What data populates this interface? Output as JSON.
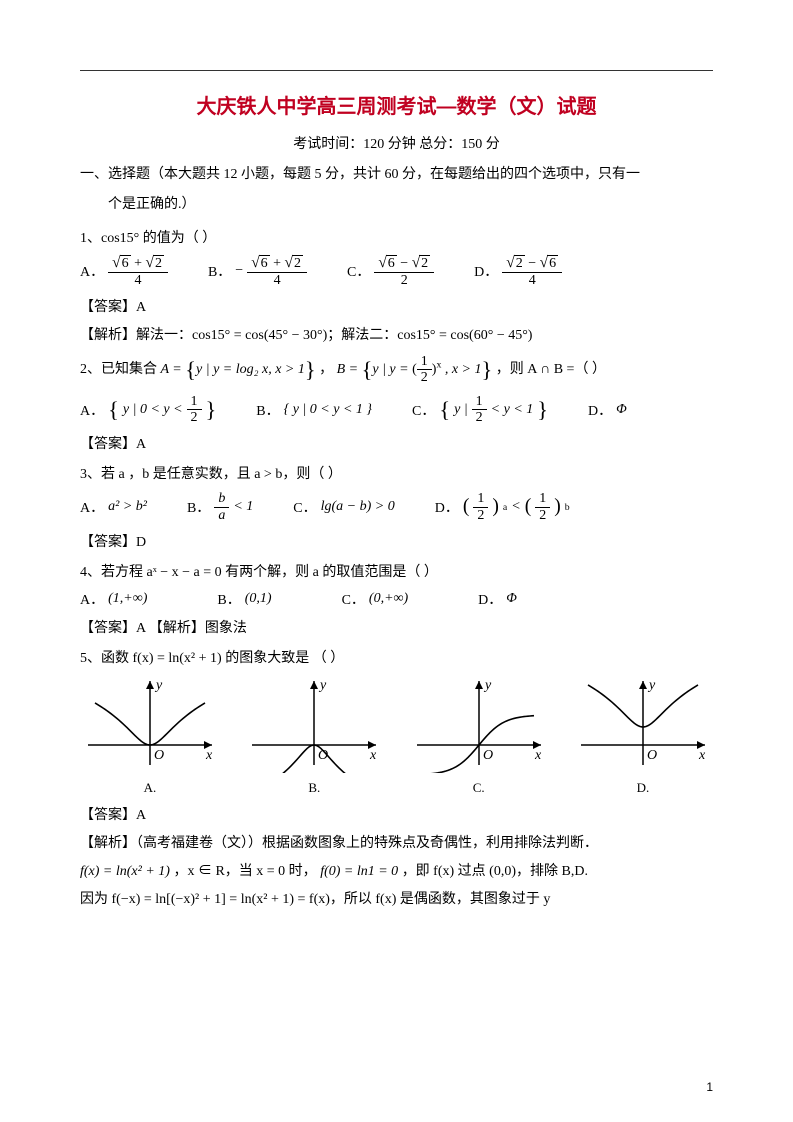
{
  "topline_color": "#333333",
  "title": "大庆铁人中学高三周测考试—数学（文）试题",
  "title_color": "#c00020",
  "meta": "考试时间：120 分钟    总分：150 分",
  "section1_line1": "一、选择题（本大题共 12 小题，每题 5 分，共计 60 分，在每题给出的四个选项中，只有一",
  "section1_line2": "个是正确的.）",
  "q1": {
    "text": "1、cos15° 的值为（   ）",
    "opts": {
      "A_prefix": "A．",
      "A_num_a": "6",
      "A_num_b": "2",
      "A_op": "+",
      "A_den": "4",
      "B_prefix": "B．",
      "B_neg": "−",
      "B_num_a": "6",
      "B_num_b": "2",
      "B_op": "+",
      "B_den": "4",
      "C_prefix": "C．",
      "C_num_a": "6",
      "C_num_b": "2",
      "C_op": "−",
      "C_den": "2",
      "D_prefix": "D．",
      "D_num_a": "2",
      "D_num_b": "6",
      "D_op": "−",
      "D_den": "4"
    },
    "answer": "【答案】A",
    "explain": "【解析】解法一：cos15° = cos(45° − 30°)；解法二：cos15° = cos(60° − 45°)"
  },
  "q2": {
    "prefix": "2、已知集合 ",
    "Aset_left": "A = ",
    "Aset_body": "y | y = log₂ x, x > 1",
    "mid": "，",
    "Bset_left": "B = ",
    "Bset_body_pre": "y | y = ",
    "Bset_frac_num": "1",
    "Bset_frac_den": "2",
    "Bset_exp": "x",
    "Bset_body_post": ", x > 1",
    "tail": "，则 A ∩ B =（   ）",
    "opts": {
      "A_prefix": "A．",
      "A_body_pre": "y | 0 < y < ",
      "A_frac_num": "1",
      "A_frac_den": "2",
      "B_prefix": "B．",
      "B_body": "{ y | 0 < y < 1 }",
      "C_prefix": "C．",
      "C_body_pre": "y | ",
      "C_frac_num": "1",
      "C_frac_den": "2",
      "C_body_post": " < y < 1",
      "D_prefix": "D．",
      "D_body": "Φ"
    },
    "answer": "【答案】A"
  },
  "q3": {
    "text": "3、若 a ，b 是任意实数，且 a > b，则（   ）",
    "opts": {
      "A_prefix": "A．",
      "A_body": "a² > b²",
      "B_prefix": "B．",
      "B_num": "b",
      "B_den": "a",
      "B_rhs": " < 1",
      "C_prefix": "C．",
      "C_body": "lg(a − b) > 0",
      "D_prefix": "D．",
      "D_base_num": "1",
      "D_base_den": "2",
      "D_expa": "a",
      "D_mid": " < ",
      "D_expb": "b"
    },
    "answer": "【答案】D"
  },
  "q4": {
    "text": "4、若方程 aˣ − x − a = 0 有两个解，则 a 的取值范围是（    ）",
    "opts": {
      "A_prefix": "A．",
      "A_body": "(1,+∞)",
      "B_prefix": "B．",
      "B_body": "(0,1)",
      "C_prefix": "C．",
      "C_body": "(0,+∞)",
      "D_prefix": "D．",
      "D_body": "Φ"
    },
    "answer": "【答案】A   【解析】图象法"
  },
  "q5": {
    "text": "5、函数 f(x) = ln(x² + 1) 的图象大致是 （    ）",
    "labels": {
      "A": "A.",
      "B": "B.",
      "C": "C.",
      "D": "D."
    },
    "graph": {
      "width": 140,
      "height": 100,
      "stroke": "#000000",
      "stroke_width": 1.6,
      "axis_color": "#000000",
      "y_label": "y",
      "x_label": "x",
      "o_label": "O",
      "label_font": "italic 14px Times New Roman"
    },
    "answer": "【答案】A",
    "explain1": "【解析】（高考福建卷（文））根据函数图象上的特殊点及奇偶性，利用排除法判断．",
    "line2_a": "f(x) = ln(x² + 1)",
    "line2_b": "，x ∈ R，当 x = 0 时，",
    "line2_c": "f(0) = ln1 = 0",
    "line2_d": "，即 f(x) 过点 (0,0)，排除 B,D.",
    "line3_a": "因为 f(−x) = ln[(−x)² + 1] = ln(x² + 1) = f(x)，所以 f(x) 是偶函数，其图象过于 y"
  },
  "page_number": "1"
}
